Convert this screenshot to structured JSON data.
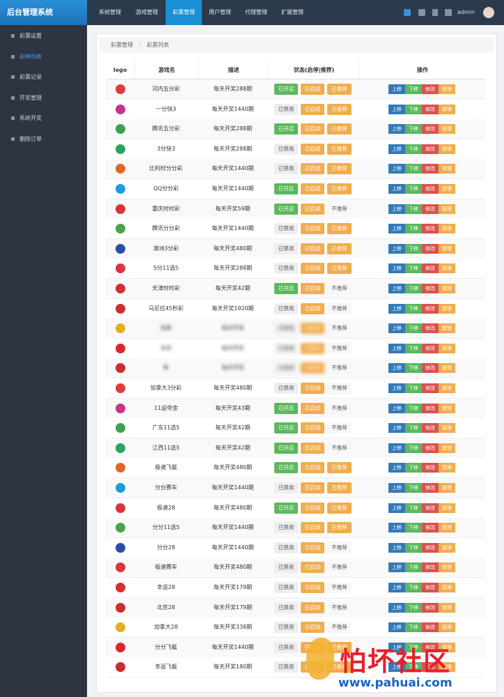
{
  "header": {
    "brand": "后台管理系统",
    "nav": [
      "系统管理",
      "游戏管理",
      "彩票管理",
      "用户管理",
      "代理管理",
      "扩展管理"
    ],
    "user": "admin"
  },
  "sidebar": {
    "items": [
      "彩票设置",
      "彩种列表",
      "彩票记录",
      "开奖管理",
      "系统开奖",
      "删除订单"
    ]
  },
  "breadcrumb": [
    "彩票管理",
    "彩票列表"
  ],
  "table": {
    "columns": [
      "logo",
      "游戏名",
      "描述",
      "状态(启停|推荐)",
      "操作"
    ],
    "actions": [
      "上移",
      "下移",
      "修改",
      "管理"
    ],
    "rows": [
      [
        "河内五分彩",
        "每天开奖288期",
        "已开启",
        "已启动",
        "已推荐"
      ],
      [
        "一分快3",
        "每天开奖1440期",
        "已禁用",
        "已启动",
        "已推荐"
      ],
      [
        "腾讯五分彩",
        "每天开奖288期",
        "已开启",
        "已启动",
        "已推荐"
      ],
      [
        "3分快3",
        "每天开奖288期",
        "已禁用",
        "已启动",
        "已推荐"
      ],
      [
        "比利时分分彩",
        "每天开奖1440期",
        "已禁用",
        "已启动",
        "已推荐"
      ],
      [
        "QQ分分彩",
        "每天开奖1440期",
        "已开启",
        "已启动",
        "已推荐"
      ],
      [
        "重庆时时彩",
        "每天开奖59期",
        "已开启",
        "已启动",
        "不推荐"
      ],
      [
        "腾讯分分彩",
        "每天开奖1440期",
        "已禁用",
        "已启动",
        "已推荐"
      ],
      [
        "澳洲3分彩",
        "每天开奖480期",
        "已禁用",
        "已启动",
        "已推荐"
      ],
      [
        "5分11选5",
        "每天开奖288期",
        "已禁用",
        "已启动",
        "已推荐"
      ],
      [
        "天津时时彩",
        "每天开奖42期",
        "已开启",
        "已启动",
        "不推荐"
      ],
      [
        "马尼拉45秒彩",
        "每天开奖1920期",
        "已禁用",
        "已启动",
        "不推荐"
      ],
      [
        "加拿",
        "每天开奖",
        "已禁用",
        "已启动",
        "不推荐"
      ],
      [
        "东京",
        "每天开奖",
        "已禁用",
        "已启动",
        "不推荐"
      ],
      [
        "新",
        "每天开奖",
        "已禁用",
        "已启动",
        "不推荐"
      ],
      [
        "加拿大3分彩",
        "每天开奖480期",
        "已禁用",
        "已启动",
        "不推荐"
      ],
      [
        "11运夺金",
        "每天开奖43期",
        "已开启",
        "已启动",
        "不推荐"
      ],
      [
        "广东11选5",
        "每天开奖42期",
        "已开启",
        "已启动",
        "不推荐"
      ],
      [
        "江西11选5",
        "每天开奖42期",
        "已开启",
        "已启动",
        "不推荐"
      ],
      [
        "极速飞艇",
        "每天开奖480期",
        "已开启",
        "已启动",
        "已推荐"
      ],
      [
        "分分赛车",
        "每天开奖1440期",
        "已禁用",
        "已启动",
        "已推荐"
      ],
      [
        "极速28",
        "每天开奖480期",
        "已开启",
        "已启动",
        "已推荐"
      ],
      [
        "分分11选5",
        "每天开奖1440期",
        "已禁用",
        "已启动",
        "已推荐"
      ],
      [
        "分分28",
        "每天开奖1440期",
        "已禁用",
        "已启动",
        "不推荐"
      ],
      [
        "极速赛车",
        "每天开奖480期",
        "已禁用",
        "已启动",
        "不推荐"
      ],
      [
        "幸运28",
        "每天开奖179期",
        "已禁用",
        "已启动",
        "不推荐"
      ],
      [
        "北京28",
        "每天开奖179期",
        "已禁用",
        "已启动",
        "不推荐"
      ],
      [
        "加拿大28",
        "每天开奖338期",
        "已禁用",
        "已启动",
        "不推荐"
      ],
      [
        "分分飞艇",
        "每天开奖1440期",
        "已禁用",
        "已启动",
        "已推荐"
      ],
      [
        "幸运飞艇",
        "每天开奖180期",
        "已禁用",
        "已启动",
        "已推荐"
      ]
    ]
  },
  "watermark": {
    "title": "怕坏社区",
    "url": "www.pahuai.com"
  }
}
